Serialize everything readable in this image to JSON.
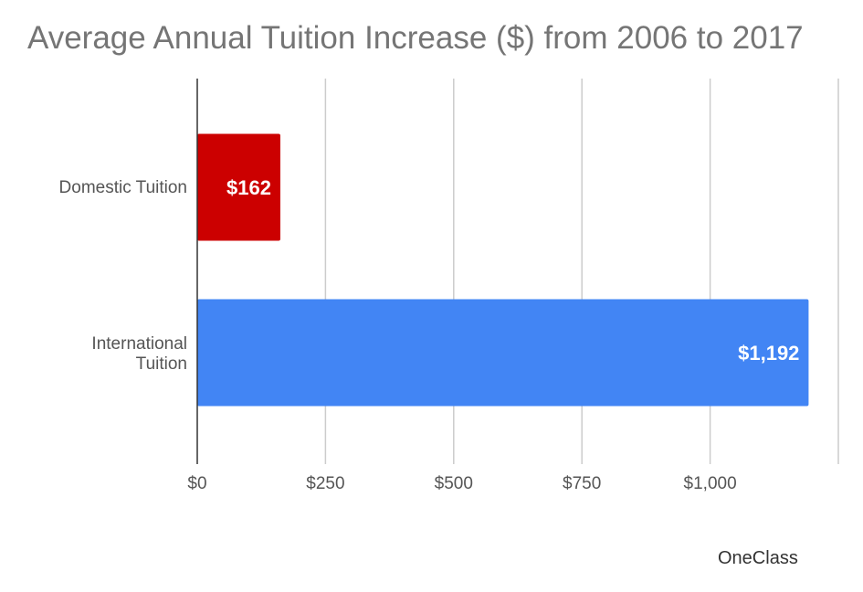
{
  "chart_data": {
    "type": "bar",
    "orientation": "horizontal",
    "title": "Average Annual Tuition Increase ($) from 2006 to 2017",
    "categories": [
      "Domestic Tuition",
      "International Tuition"
    ],
    "values": [
      162,
      1192
    ],
    "value_labels": [
      "$162",
      "$1,192"
    ],
    "colors": [
      "#cc0000",
      "#4285f4"
    ],
    "xlim": [
      0,
      1250
    ],
    "x_ticks": [
      0,
      250,
      500,
      750,
      1000
    ],
    "x_tick_labels": [
      "$0",
      "$250",
      "$500",
      "$750",
      "$1,000"
    ],
    "grid": true,
    "legend": "none"
  },
  "watermark": {
    "text": "OneClass"
  }
}
